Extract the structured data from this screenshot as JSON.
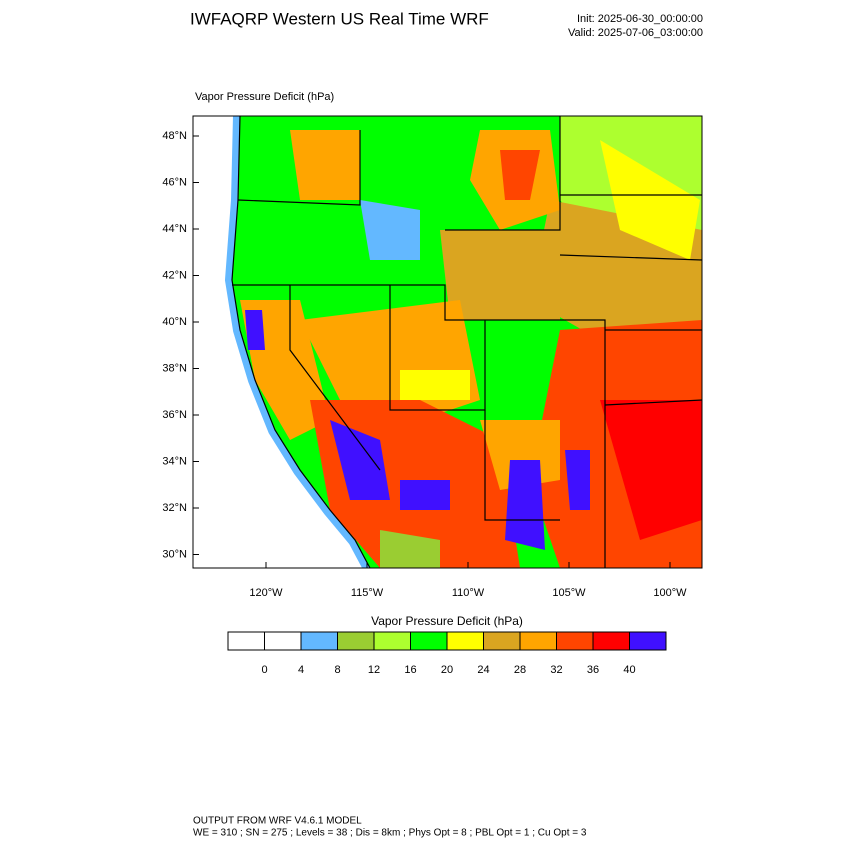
{
  "header": {
    "title": "IWFAQRP Western US Real Time WRF",
    "init": "Init: 2025-06-30_00:00:00",
    "valid": "Valid: 2025-07-06_03:00:00"
  },
  "map": {
    "label": "Vapor Pressure Deficit   (hPa)",
    "lat_labels": [
      "48°N",
      "46°N",
      "44°N",
      "42°N",
      "40°N",
      "38°N",
      "36°N",
      "34°N",
      "32°N",
      "30°N"
    ],
    "lon_labels": [
      "120°W",
      "115°W",
      "110°W",
      "105°W",
      "100°W"
    ]
  },
  "colorbar": {
    "title": "Vapor Pressure Deficit  (hPa)",
    "levels": [
      0,
      4,
      8,
      12,
      16,
      20,
      24,
      28,
      32,
      36,
      40
    ],
    "colors": [
      "#ffffff",
      "#ffffff",
      "#63b8ff",
      "#9acd32",
      "#adff2f",
      "#00ff00",
      "#ffff00",
      "#daa520",
      "#ffa500",
      "#ff4500",
      "#ff0000",
      "#4010ff"
    ]
  },
  "footer": {
    "line1": "OUTPUT FROM WRF V4.6.1 MODEL",
    "line2": "WE = 310 ; SN = 275 ; Levels = 38 ; Dis = 8km ; Phys Opt = 8 ; PBL Opt = 1 ; Cu Opt = 3"
  }
}
